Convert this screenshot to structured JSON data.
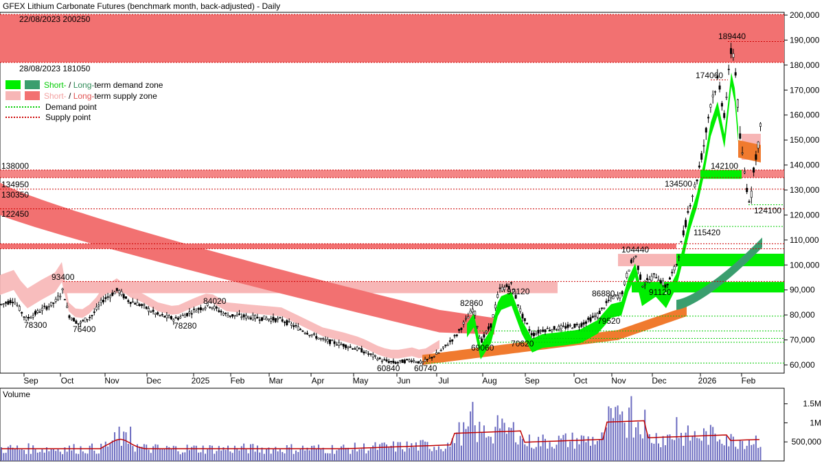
{
  "title": "GFEX Lithium Carbonate Futures (benchmark month, back-adjusted) - Daily",
  "volume_label": "Volume",
  "legend": {
    "demand_short": "Short-",
    "demand_sep": " / ",
    "demand_long": "Long-",
    "demand_suffix": "term demand zone",
    "supply_short": "Short-",
    "supply_sep": " / ",
    "supply_long": "Long-",
    "supply_suffix": "term supply zone",
    "demand_point": "Demand point",
    "supply_point": "Supply point"
  },
  "colors": {
    "demand_short": "#00ee00",
    "demand_long": "#3a9e6e",
    "supply_short": "#f7b6b6",
    "supply_long": "#f27171",
    "orange": "#f07a2e",
    "volume_bar": "#6b6bc0",
    "volume_ma": "#c00000"
  },
  "chart_data": {
    "type": "candlestick",
    "price_axis": {
      "min": 55000,
      "max": 205000,
      "ticks": [
        "200,000",
        "190,000",
        "180,000",
        "170,000",
        "160,000",
        "150,000",
        "140,000",
        "130,000",
        "120,000",
        "110,000",
        "100,000",
        "90,000",
        "80,000",
        "70,000",
        "60,000"
      ]
    },
    "time_axis": [
      "Sep",
      "Oct",
      "Nov",
      "Dec",
      "2025",
      "Feb",
      "Mar",
      "Apr",
      "May",
      "Jun",
      "Jul",
      "Aug",
      "Sep",
      "Oct",
      "Nov",
      "Dec",
      "2026",
      "Feb"
    ],
    "volume_axis": [
      "1.5M",
      "1M",
      "500,000"
    ],
    "zone_labels": [
      {
        "text": "22/08/2023 200250",
        "price": 200250
      },
      {
        "text": "28/08/2023 181050",
        "price": 181050
      },
      {
        "text": "138000",
        "price": 138000
      },
      {
        "text": "134950",
        "price": 134950
      },
      {
        "text": "130350",
        "price": 130350
      },
      {
        "text": "122450",
        "price": 122450
      }
    ],
    "price_annotations": [
      {
        "text": "189440",
        "price": 189440
      },
      {
        "text": "174060",
        "price": 174060
      },
      {
        "text": "142100",
        "price": 142100
      },
      {
        "text": "134500",
        "price": 134500
      },
      {
        "text": "124100",
        "price": 124100
      },
      {
        "text": "115420",
        "price": 115420
      },
      {
        "text": "104440",
        "price": 104440
      },
      {
        "text": "93400",
        "price": 93400
      },
      {
        "text": "92120",
        "price": 92120
      },
      {
        "text": "91120",
        "price": 91120
      },
      {
        "text": "86880",
        "price": 86880
      },
      {
        "text": "84020",
        "price": 84020
      },
      {
        "text": "82860",
        "price": 82860
      },
      {
        "text": "79520",
        "price": 79520
      },
      {
        "text": "78300",
        "price": 78300
      },
      {
        "text": "78280",
        "price": 78280
      },
      {
        "text": "76400",
        "price": 76400
      },
      {
        "text": "70620",
        "price": 70620
      },
      {
        "text": "69060",
        "price": 69060
      },
      {
        "text": "60840",
        "price": 60840
      },
      {
        "text": "60740",
        "price": 60740
      }
    ],
    "key_points": [
      {
        "month": "Aug 2024",
        "price": 78300
      },
      {
        "month": "Oct 2024",
        "price": 93400
      },
      {
        "month": "Oct 2024",
        "price": 76400
      },
      {
        "month": "Jan 2025",
        "price": 84020
      },
      {
        "month": "Dec 2024",
        "price": 78280
      },
      {
        "month": "Jun 2025",
        "price": 60840
      },
      {
        "month": "Jun 2025",
        "price": 60740
      },
      {
        "month": "Jul 2025",
        "price": 82860
      },
      {
        "month": "Jul 2025",
        "price": 69060
      },
      {
        "month": "Aug 2025",
        "price": 92120
      },
      {
        "month": "Sep 2025",
        "price": 70620
      },
      {
        "month": "Oct 2025",
        "price": 86880
      },
      {
        "month": "Oct 2025",
        "price": 79520
      },
      {
        "month": "Nov 2025",
        "price": 104440
      },
      {
        "month": "Nov 2025",
        "price": 91120
      },
      {
        "month": "Dec 2025",
        "price": 115420
      },
      {
        "month": "Dec 2025",
        "price": 134500
      },
      {
        "month": "Jan 2026",
        "price": 174060
      },
      {
        "month": "Jan 2026",
        "price": 189440
      },
      {
        "month": "Jan 2026",
        "price": 142100
      },
      {
        "month": "Feb 2026",
        "price": 124100
      }
    ]
  }
}
